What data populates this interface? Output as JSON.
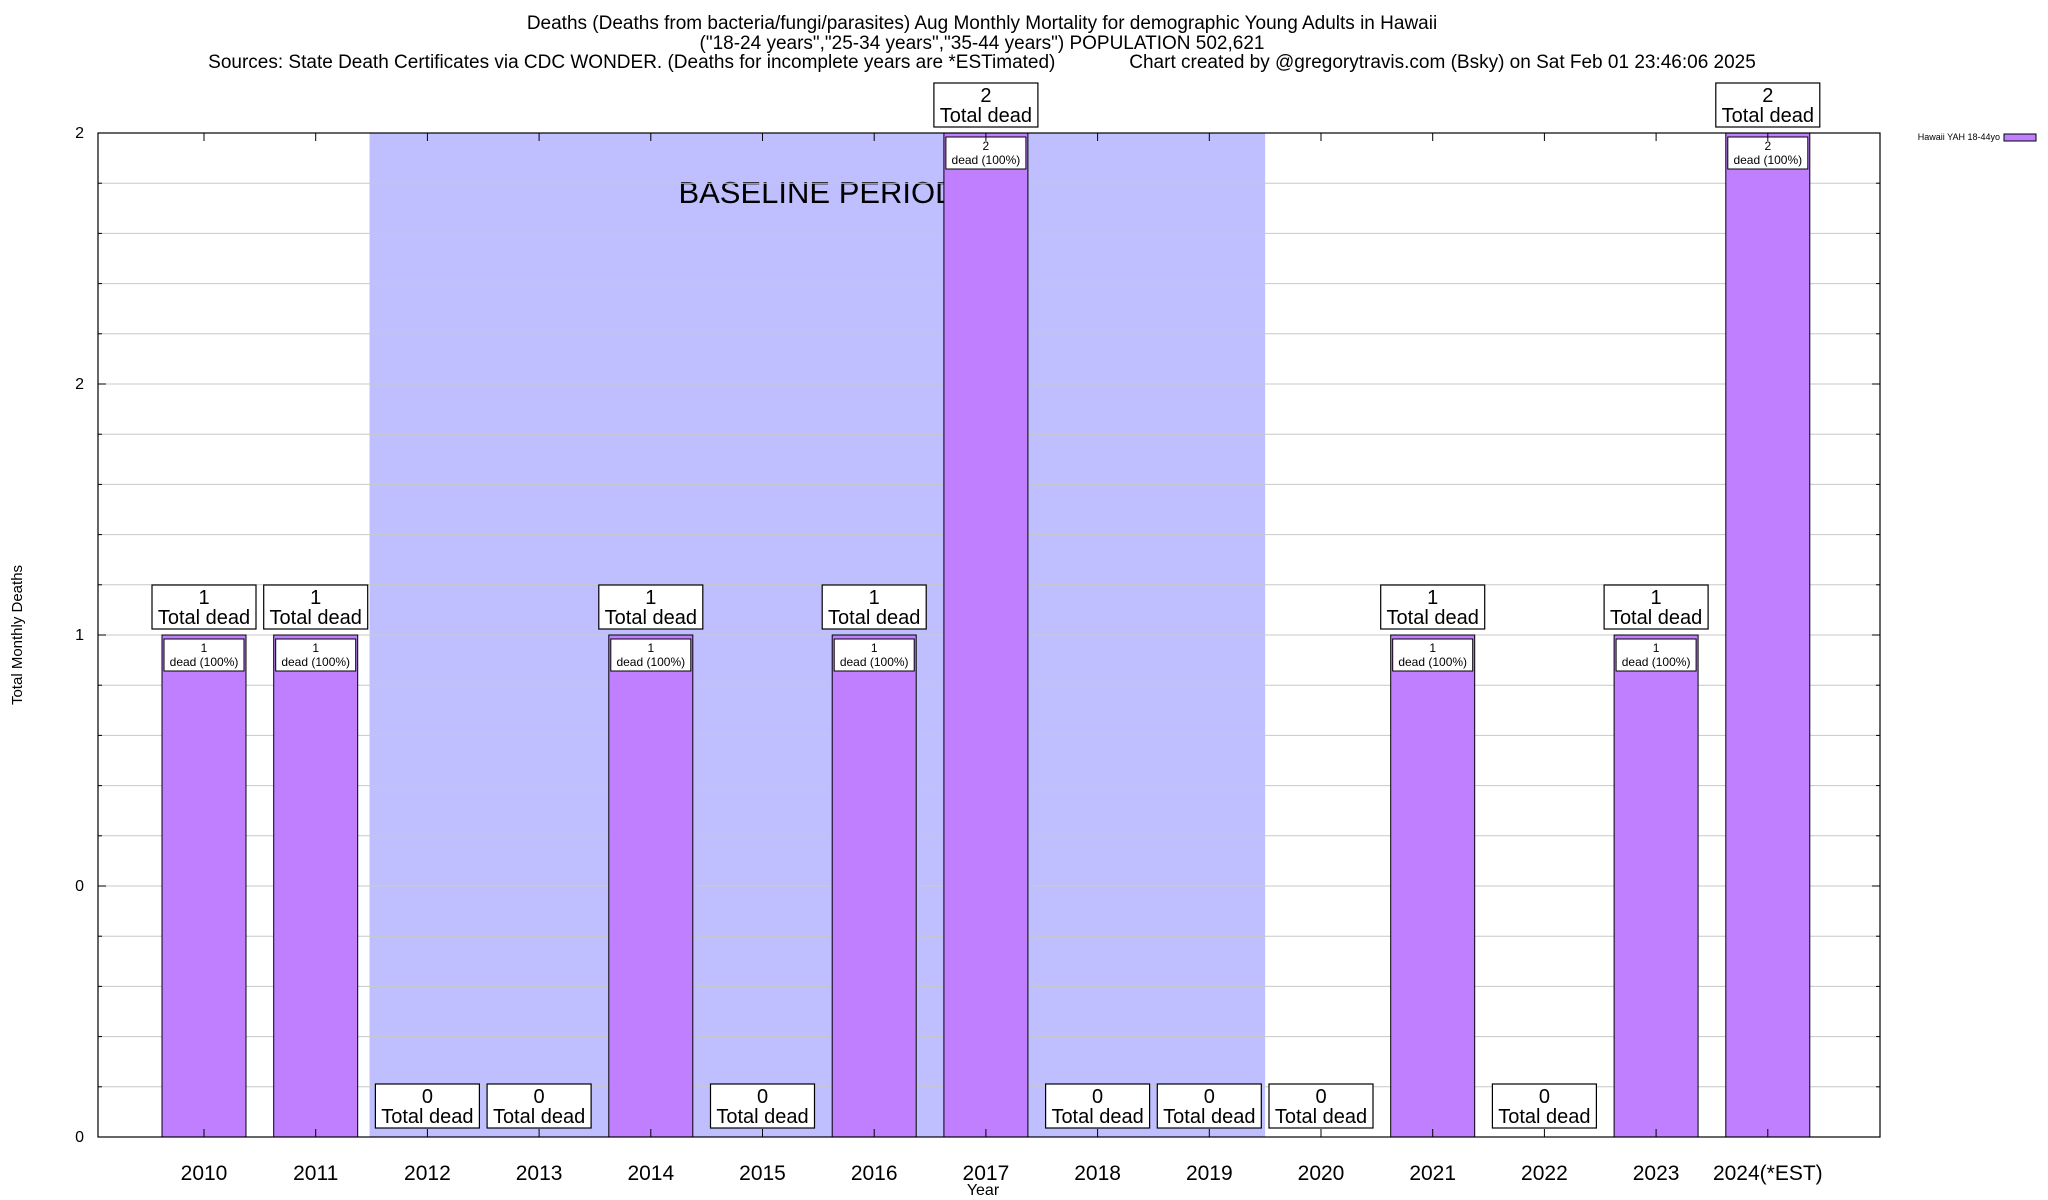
{
  "chart_data": {
    "type": "bar",
    "title_lines": [
      "Deaths (Deaths from bacteria/fungi/parasites) Aug Monthly Mortality for demographic Young Adults in Hawaii",
      "(\"18-24 years\",\"25-34 years\",\"35-44 years\") POPULATION 502,621",
      "Sources: State Death Certificates via CDC WONDER. (Deaths for incomplete years are *ESTimated)              Chart created by @gregorytravis.com (Bsky) on Sat Feb 01 23:46:06 2025"
    ],
    "xlabel": "Year",
    "ylabel": "Total Monthly Deaths",
    "categories": [
      "2010",
      "2011",
      "2012",
      "2013",
      "2014",
      "2015",
      "2016",
      "2017",
      "2018",
      "2019",
      "2020",
      "2021",
      "2022",
      "2023",
      "2024(*EST)"
    ],
    "series": [
      {
        "name": "Hawaii YAH 18-44yo",
        "color": "#bf7fff",
        "values": [
          1,
          1,
          0,
          0,
          1,
          0,
          1,
          2,
          0,
          0,
          0,
          1,
          0,
          1,
          2
        ]
      }
    ],
    "ylim": [
      0,
      2
    ],
    "ytick_labels": [
      "0",
      "0",
      "1",
      "2",
      "2"
    ],
    "grid": true,
    "legend_position": "top-right",
    "baseline_period": {
      "label": "BASELINE PERIOD",
      "start": "2012",
      "end": "2019",
      "color": "#bfbfff"
    },
    "total_label_suffix": "Total dead",
    "inner_label_suffix": "dead (100%)"
  }
}
